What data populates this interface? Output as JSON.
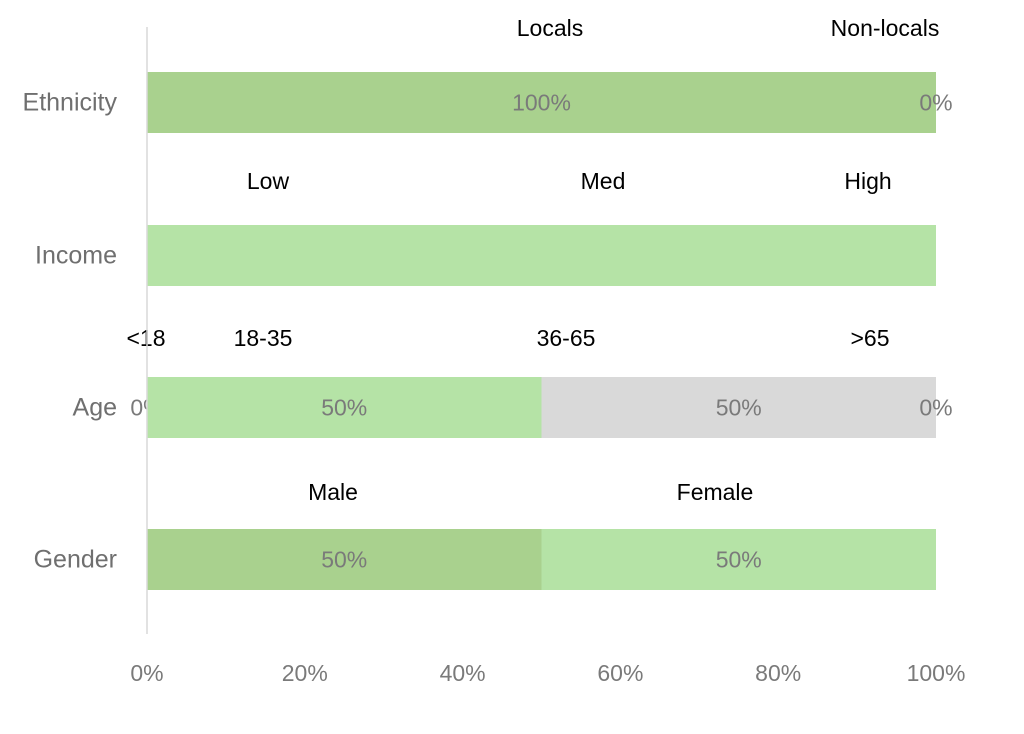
{
  "chart_data": {
    "type": "bar",
    "orientation": "horizontal",
    "stacked": true,
    "percent": true,
    "categories": [
      "Ethnicity",
      "Income",
      "Age",
      "Gender"
    ],
    "xlim": [
      0,
      100
    ],
    "xticks": [
      "0%",
      "20%",
      "40%",
      "60%",
      "80%",
      "100%"
    ],
    "grid": false,
    "legend": "none",
    "rows": [
      {
        "category": "Ethnicity",
        "segments": [
          {
            "name": "Locals",
            "value": 100,
            "label": "100%",
            "color": "#a9d18e"
          },
          {
            "name": "Non-locals",
            "value": 0,
            "label": "0%",
            "color": "#b5e3a6"
          }
        ]
      },
      {
        "category": "Income",
        "segments": [
          {
            "name": "Low",
            "value": 0,
            "label": "",
            "color": "#b5e3a6"
          },
          {
            "name": "Med",
            "value": 0,
            "label": "",
            "color": "#b5e3a6"
          },
          {
            "name": "High",
            "value": 100,
            "label": "",
            "color": "#b5e3a6"
          }
        ]
      },
      {
        "category": "Age",
        "segments": [
          {
            "name": "<18",
            "value": 0,
            "label": "0%",
            "color": "#b5e3a6"
          },
          {
            "name": "18-35",
            "value": 50,
            "label": "50%",
            "color": "#b5e3a6"
          },
          {
            "name": "36-65",
            "value": 50,
            "label": "50%",
            "color": "#d9d9d9"
          },
          {
            "name": ">65",
            "value": 0,
            "label": "0%",
            "color": "#d9d9d9"
          }
        ]
      },
      {
        "category": "Gender",
        "segments": [
          {
            "name": "Male",
            "value": 50,
            "label": "50%",
            "color": "#a9d18e"
          },
          {
            "name": "Female",
            "value": 50,
            "label": "50%",
            "color": "#b5e3a6"
          }
        ]
      }
    ]
  }
}
